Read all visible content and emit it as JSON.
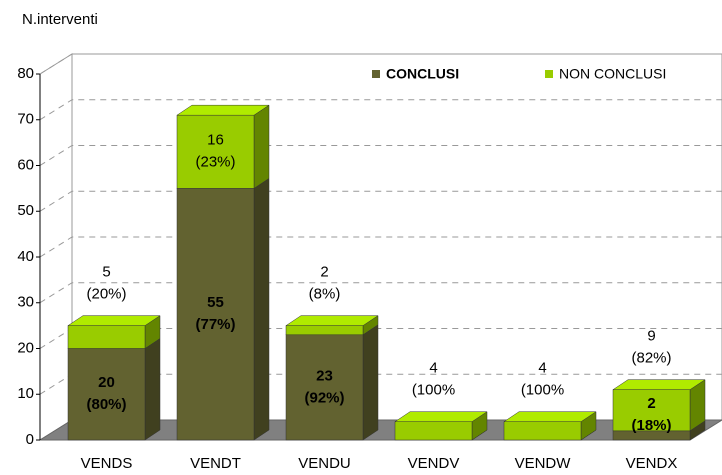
{
  "chart_data": {
    "type": "bar3d_stacked",
    "y_axis_label": "N.interventi",
    "categories": [
      "VENDS",
      "VENDT",
      "VENDU",
      "VENDV",
      "VENDW",
      "VENDX"
    ],
    "series": [
      {
        "name": "CONCLUSI",
        "color": "#626230",
        "values": [
          20,
          55,
          23,
          0,
          0,
          2
        ],
        "percent_labels": [
          "(80%)",
          "(77%)",
          "(92%)",
          null,
          null,
          "(18%)"
        ]
      },
      {
        "name": "NON CONCLUSI",
        "color": "#99cc00",
        "values": [
          5,
          16,
          2,
          4,
          4,
          9
        ],
        "percent_labels": [
          "(20%)",
          "(23%)",
          "(8%)",
          "(100%",
          "(100%",
          "(82%)"
        ]
      }
    ],
    "ylim": [
      0,
      80
    ],
    "yticks": [
      0,
      10,
      20,
      30,
      40,
      50,
      60,
      70,
      80
    ],
    "grid": true,
    "legend": "top"
  }
}
